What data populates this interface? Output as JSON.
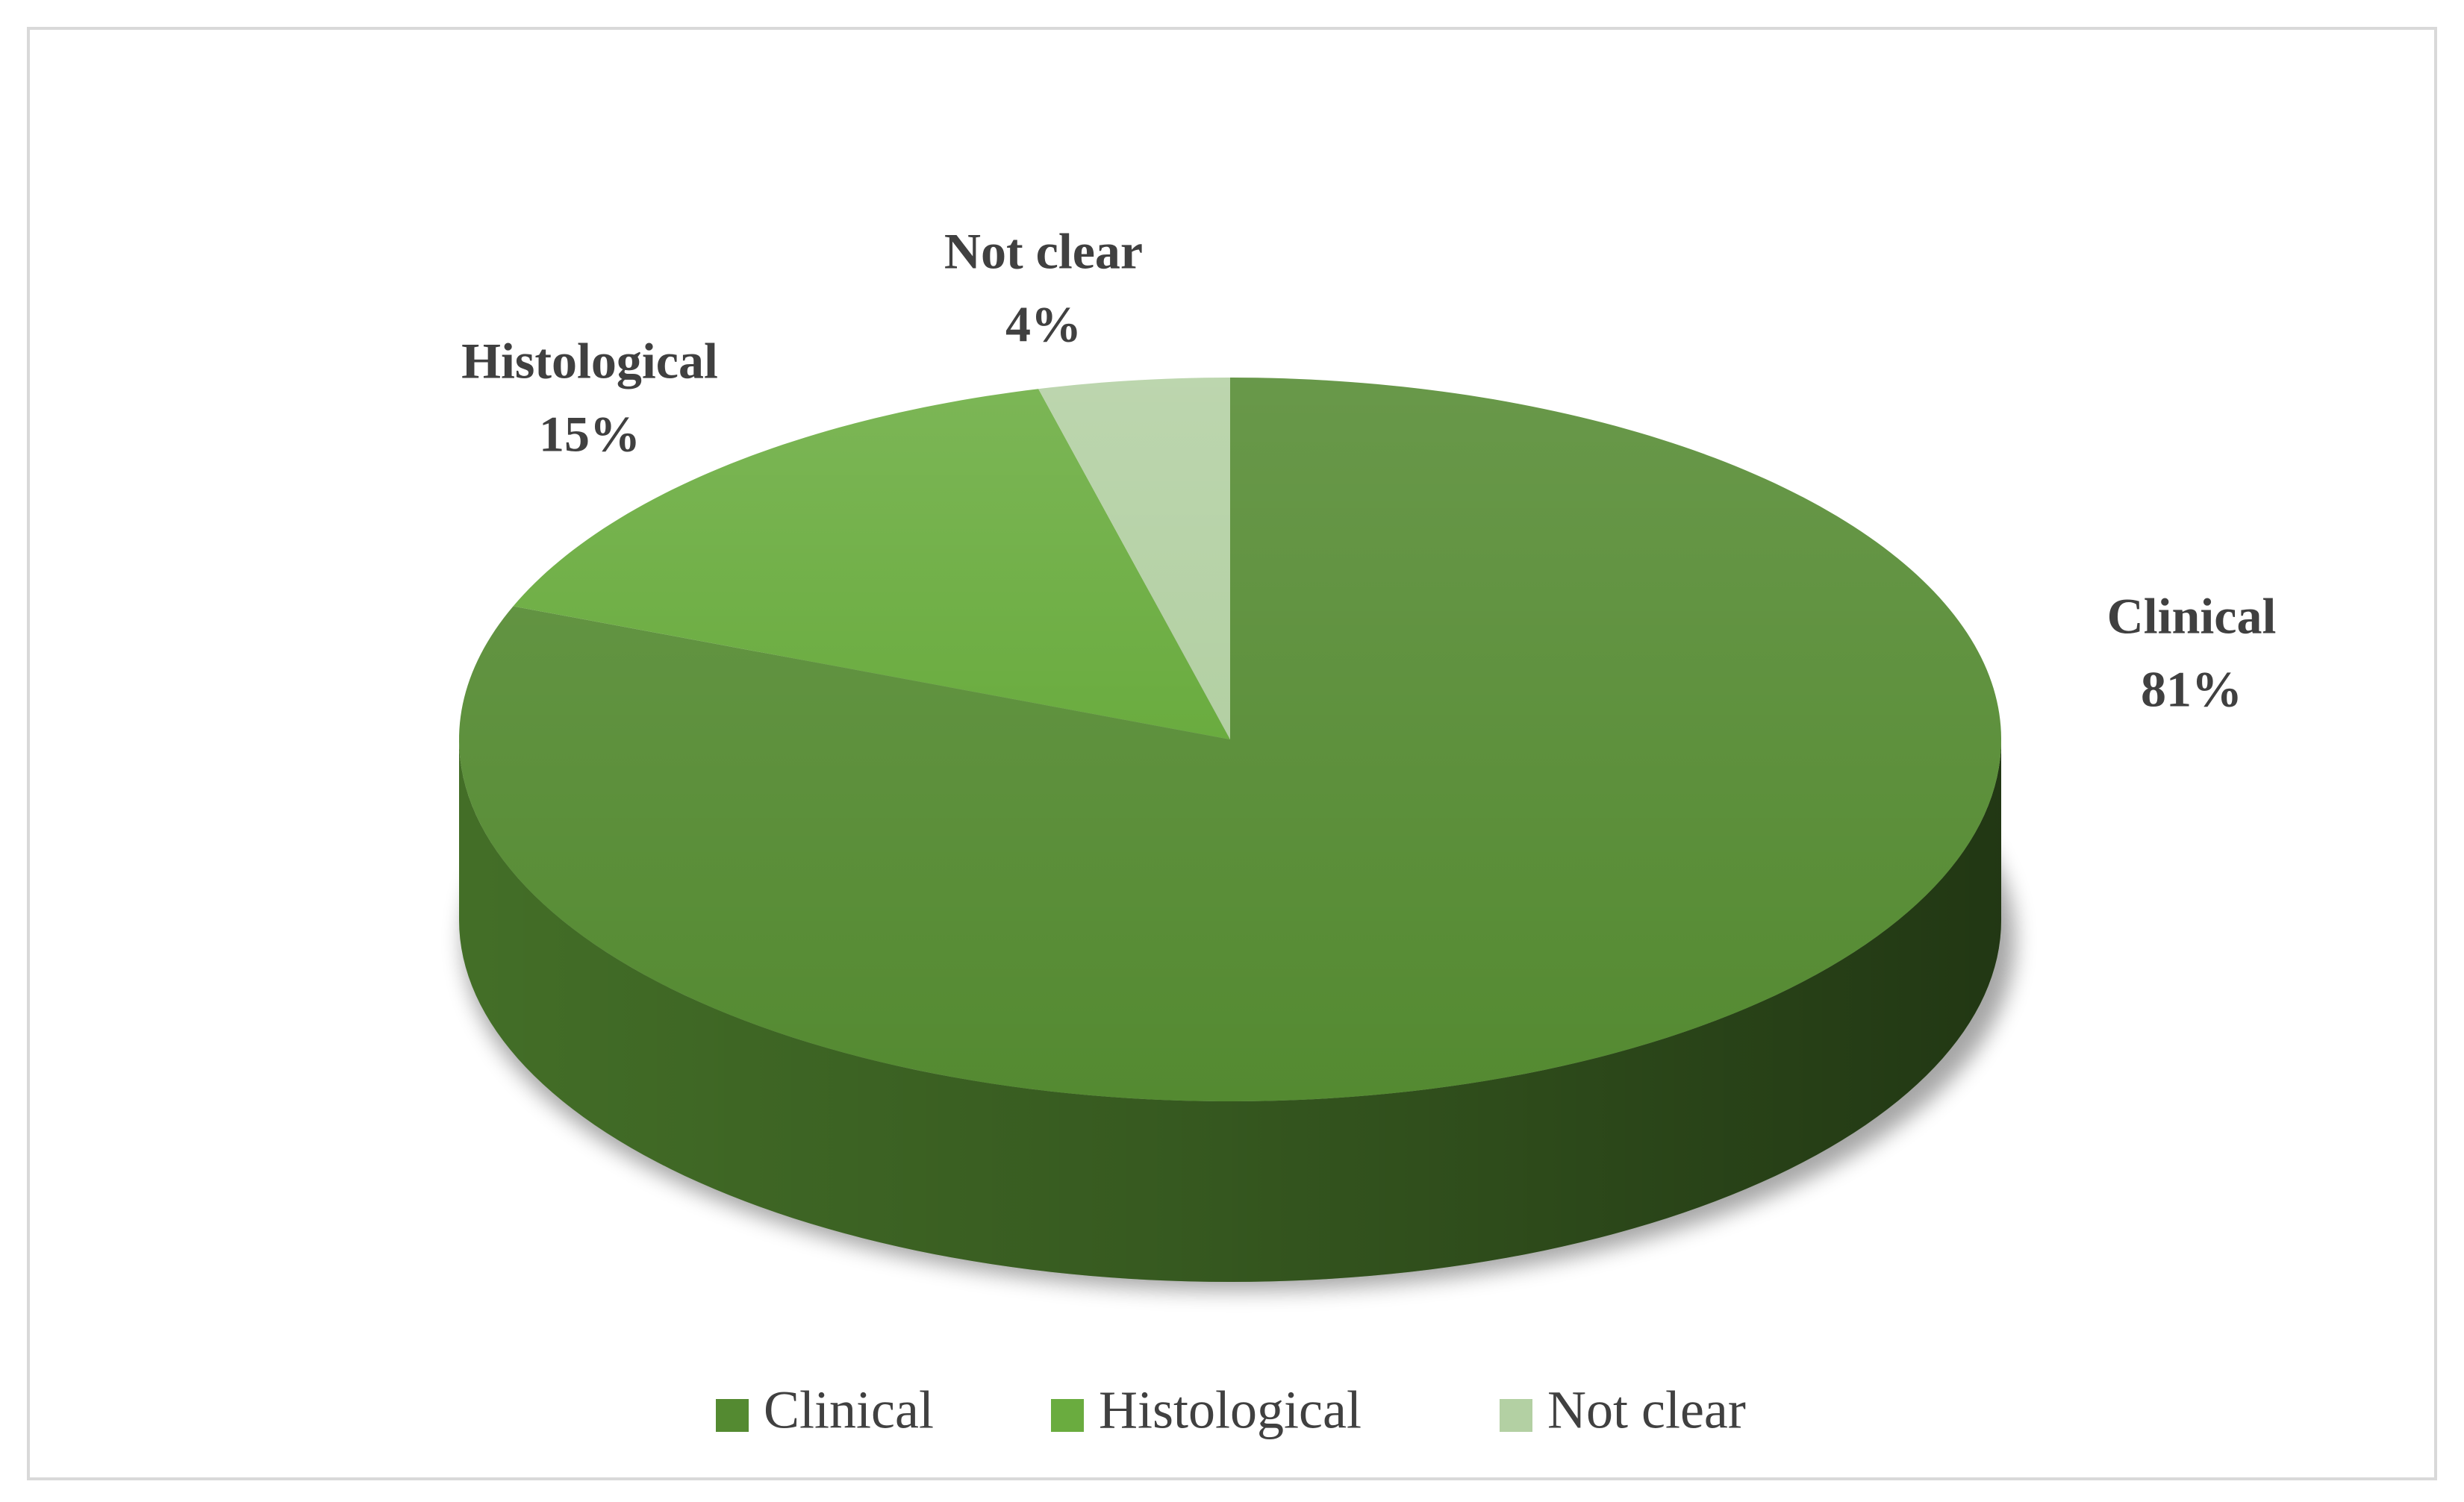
{
  "chart_data": {
    "type": "pie",
    "categories": [
      "Clinical",
      "Histological",
      "Not clear"
    ],
    "values": [
      81,
      15,
      4
    ],
    "value_labels": [
      "81%",
      "15%",
      "4%"
    ],
    "colors": [
      "#548a31",
      "#6aac3f",
      "#b3d0a3"
    ],
    "legend": "bottom"
  }
}
